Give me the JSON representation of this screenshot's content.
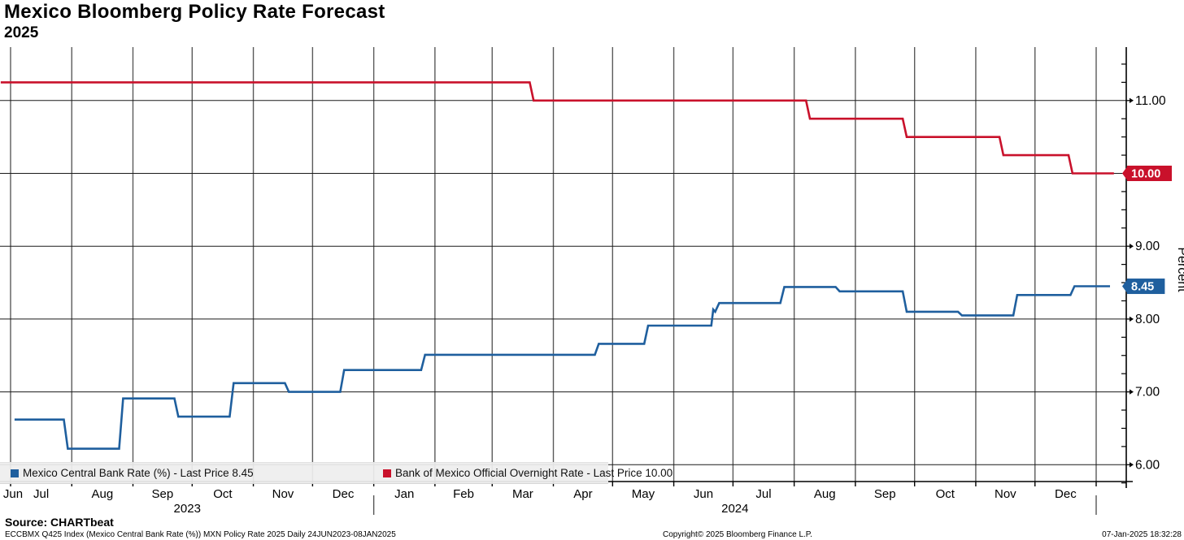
{
  "header": {
    "title": "Mexico Bloomberg Policy Rate Forecast",
    "subtitle": "2025"
  },
  "legend": {
    "items": [
      {
        "label": "Mexico Central Bank Rate (%) - Last Price 8.45",
        "color": "#1f5f9e"
      },
      {
        "label": "Bank of Mexico Official Overnight Rate - Last Price 10.00",
        "color": "#c9112b"
      }
    ]
  },
  "footer": {
    "source": "Source: CHARTbeat",
    "index_line": "ECCBMX Q425 Index (Mexico Central Bank Rate (%)) MXN Policy Rate 2025  Daily 24JUN2023-08JAN2025",
    "copyright": "Copyright© 2025 Bloomberg Finance L.P.",
    "timestamp": "07-Jan-2025 18:32:28"
  },
  "chart_data": {
    "type": "line",
    "title": "Mexico Bloomberg Policy Rate Forecast 2025",
    "xlabel": "",
    "ylabel": "Percent",
    "ylim": [
      5.76,
      11.74
    ],
    "y_major_ticks": [
      6,
      7,
      8,
      9,
      10,
      11
    ],
    "y_labeled_ticks": [
      6,
      7,
      8,
      9,
      11
    ],
    "x_start": "2023-06-26",
    "x_end": "2025-01-12",
    "month_axis_start": "2023-07-01",
    "month_boundary_count": 19,
    "month_labels": [
      "Jun",
      "Jul",
      "Aug",
      "Sep",
      "Oct",
      "Nov",
      "Dec",
      "Jan",
      "Feb",
      "Mar",
      "Apr",
      "May",
      "Jun",
      "Jul",
      "Aug",
      "Sep",
      "Oct",
      "Nov",
      "Dec"
    ],
    "year_labels": [
      {
        "text": "2023",
        "center_between": [
          "2023-06-26",
          "2024-01-01"
        ]
      },
      {
        "text": "2024",
        "center_between": [
          "2024-01-01",
          "2025-01-01"
        ]
      }
    ],
    "grid": true,
    "legend_position": "inside-bottom-left",
    "series": [
      {
        "name": "Mexico Central Bank Rate (%) - Last Price 8.45",
        "color": "#1f5f9e",
        "last_price": "8.45",
        "points": [
          [
            "2023-07-03",
            6.62
          ],
          [
            "2023-07-28",
            6.62
          ],
          [
            "2023-07-30",
            6.22
          ],
          [
            "2023-08-25",
            6.22
          ],
          [
            "2023-08-27",
            6.91
          ],
          [
            "2023-09-22",
            6.91
          ],
          [
            "2023-09-24",
            6.66
          ],
          [
            "2023-10-20",
            6.66
          ],
          [
            "2023-10-22",
            7.12
          ],
          [
            "2023-11-17",
            7.12
          ],
          [
            "2023-11-19",
            7.0
          ],
          [
            "2023-12-15",
            7.0
          ],
          [
            "2023-12-17",
            7.3
          ],
          [
            "2024-01-25",
            7.3
          ],
          [
            "2024-01-27",
            7.51
          ],
          [
            "2024-04-22",
            7.51
          ],
          [
            "2024-04-24",
            7.66
          ],
          [
            "2024-05-17",
            7.66
          ],
          [
            "2024-05-19",
            7.91
          ],
          [
            "2024-06-20",
            7.91
          ],
          [
            "2024-06-21",
            8.13
          ],
          [
            "2024-06-22",
            8.1
          ],
          [
            "2024-06-24",
            8.22
          ],
          [
            "2024-07-25",
            8.22
          ],
          [
            "2024-07-27",
            8.44
          ],
          [
            "2024-08-22",
            8.44
          ],
          [
            "2024-08-24",
            8.38
          ],
          [
            "2024-09-25",
            8.38
          ],
          [
            "2024-09-27",
            8.1
          ],
          [
            "2024-10-23",
            8.1
          ],
          [
            "2024-10-25",
            8.05
          ],
          [
            "2024-11-20",
            8.05
          ],
          [
            "2024-11-22",
            8.33
          ],
          [
            "2024-12-19",
            8.33
          ],
          [
            "2024-12-21",
            8.45
          ],
          [
            "2025-01-08",
            8.45
          ]
        ]
      },
      {
        "name": "Bank of Mexico Official Overnight Rate - Last Price 10.00",
        "color": "#c9112b",
        "last_price": "10.00",
        "points": [
          [
            "2023-06-26",
            11.25
          ],
          [
            "2024-03-20",
            11.25
          ],
          [
            "2024-03-22",
            11.0
          ],
          [
            "2024-08-07",
            11.0
          ],
          [
            "2024-08-09",
            10.75
          ],
          [
            "2024-09-25",
            10.75
          ],
          [
            "2024-09-27",
            10.5
          ],
          [
            "2024-11-13",
            10.5
          ],
          [
            "2024-11-15",
            10.25
          ],
          [
            "2024-12-18",
            10.25
          ],
          [
            "2024-12-20",
            10.0
          ],
          [
            "2025-01-10",
            10.0
          ]
        ]
      }
    ]
  }
}
